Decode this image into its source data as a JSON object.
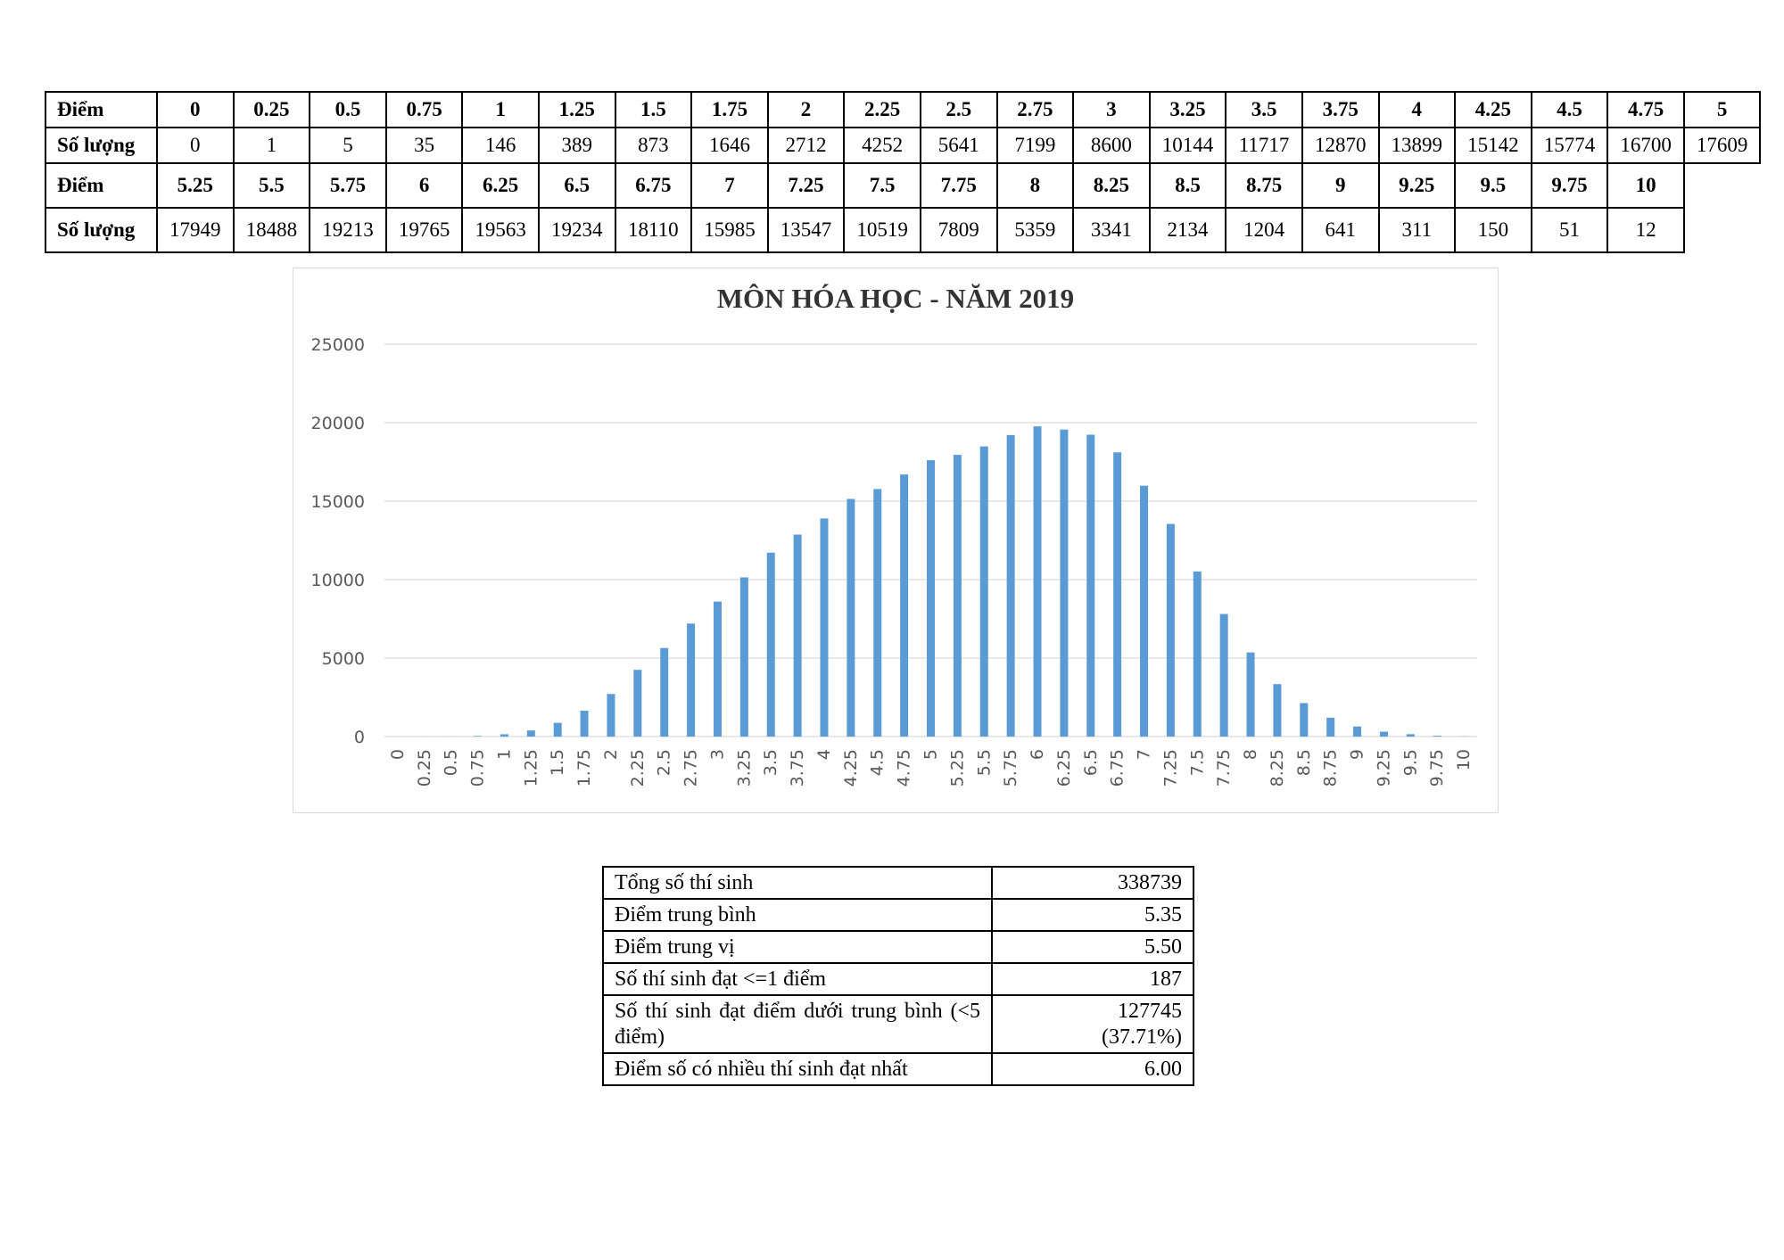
{
  "table": {
    "score_label": "Điểm",
    "count_label": "Số lượng",
    "row1_scores": [
      "0",
      "0.25",
      "0.5",
      "0.75",
      "1",
      "1.25",
      "1.5",
      "1.75",
      "2",
      "2.25",
      "2.5",
      "2.75",
      "3",
      "3.25",
      "3.5",
      "3.75",
      "4",
      "4.25",
      "4.5",
      "4.75",
      "5"
    ],
    "row1_counts": [
      "0",
      "1",
      "5",
      "35",
      "146",
      "389",
      "873",
      "1646",
      "2712",
      "4252",
      "5641",
      "7199",
      "8600",
      "10144",
      "11717",
      "12870",
      "13899",
      "15142",
      "15774",
      "16700",
      "17609"
    ],
    "row2_scores": [
      "5.25",
      "5.5",
      "5.75",
      "6",
      "6.25",
      "6.5",
      "6.75",
      "7",
      "7.25",
      "7.5",
      "7.75",
      "8",
      "8.25",
      "8.5",
      "8.75",
      "9",
      "9.25",
      "9.5",
      "9.75",
      "10"
    ],
    "row2_counts": [
      "17949",
      "18488",
      "19213",
      "19765",
      "19563",
      "19234",
      "18110",
      "15985",
      "13547",
      "10519",
      "7809",
      "5359",
      "3341",
      "2134",
      "1204",
      "641",
      "311",
      "150",
      "51",
      "12"
    ]
  },
  "chart_data": {
    "type": "bar",
    "title": "MÔN HÓA HỌC - NĂM 2019",
    "xlabel": "",
    "ylabel": "",
    "ylim": [
      0,
      25000
    ],
    "yticks": [
      "0",
      "5000",
      "10000",
      "15000",
      "20000",
      "25000"
    ],
    "grid": true,
    "color": "#5b9bd5",
    "categories": [
      "0",
      "0.25",
      "0.5",
      "0.75",
      "1",
      "1.25",
      "1.5",
      "1.75",
      "2",
      "2.25",
      "2.5",
      "2.75",
      "3",
      "3.25",
      "3.5",
      "3.75",
      "4",
      "4.25",
      "4.5",
      "4.75",
      "5",
      "5.25",
      "5.5",
      "5.75",
      "6",
      "6.25",
      "6.5",
      "6.75",
      "7",
      "7.25",
      "7.5",
      "7.75",
      "8",
      "8.25",
      "8.5",
      "8.75",
      "9",
      "9.25",
      "9.5",
      "9.75",
      "10"
    ],
    "values": [
      0,
      1,
      5,
      35,
      146,
      389,
      873,
      1646,
      2712,
      4252,
      5641,
      7199,
      8600,
      10144,
      11717,
      12870,
      13899,
      15142,
      15774,
      16700,
      17609,
      17949,
      18488,
      19213,
      19765,
      19563,
      19234,
      18110,
      15985,
      13547,
      10519,
      7809,
      5359,
      3341,
      2134,
      1204,
      641,
      311,
      150,
      51,
      12
    ]
  },
  "summary": [
    {
      "label": "Tổng số thí sinh",
      "value": "338739"
    },
    {
      "label": "Điểm trung bình",
      "value": "5.35"
    },
    {
      "label": "Điểm trung vị",
      "value": "5.50"
    },
    {
      "label": "Số thí sinh đạt <=1 điểm",
      "value": "187"
    },
    {
      "label": "Số thí sinh đạt điểm dưới trung bình (<5 điểm)",
      "value": "127745",
      "value_extra": "(37.71%)"
    },
    {
      "label": "Điểm số có nhiều thí sinh đạt nhất",
      "value": "6.00"
    }
  ]
}
